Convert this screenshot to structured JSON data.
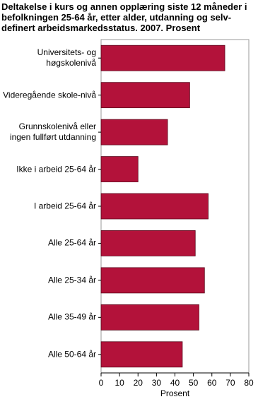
{
  "chart_data": {
    "type": "barh",
    "title": "Deltakelse i kurs og annen opplæring siste 12 måneder i befolkningen 25-64 år, etter alder, utdanning og selv-definert arbeidsmarkedsstatus. 2007. Prosent",
    "categories": [
      "Universitets- og\nhøgskolenivå",
      "Videregående skole-nivå",
      "Grunnskolenivå eller\ningen fullført utdanning",
      "Ikke i arbeid 25-64 år",
      "I arbeid 25-64 år",
      "Alle 25-64 år",
      "Alle 25-34 år",
      "Alle 35-49 år",
      "Alle 50-64 år"
    ],
    "values": [
      67,
      48,
      36,
      20,
      58,
      51,
      56,
      53,
      44
    ],
    "color": "#b3123a",
    "xlabel": "Prosent",
    "xlim": [
      0,
      80
    ],
    "xticks": [
      0,
      10,
      20,
      30,
      40,
      50,
      60,
      70,
      80
    ],
    "grid": false
  }
}
